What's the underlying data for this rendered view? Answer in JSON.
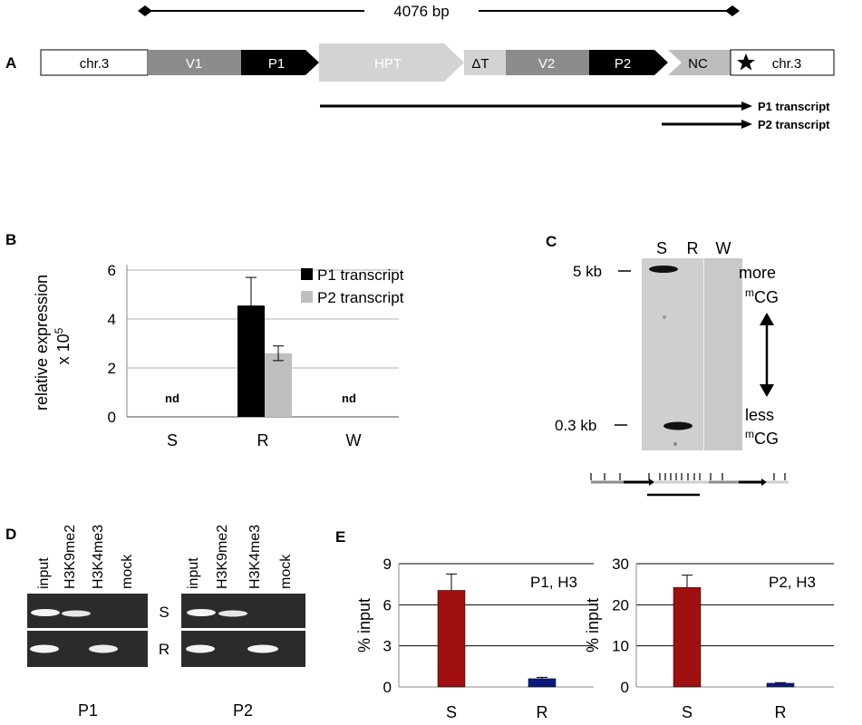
{
  "panel_a": {
    "label": "A",
    "span_label": "4076 bp",
    "segments": [
      "chr.3",
      "V1",
      "P1",
      "HPT",
      "ΔT",
      "V2",
      "P2",
      "NC",
      "chr.3"
    ],
    "star_icon": "star-icon",
    "transcripts": [
      "P1 transcript",
      "P2 transcript"
    ]
  },
  "panel_b": {
    "label": "B"
  },
  "panel_c": {
    "label": "C",
    "lanes": [
      "S",
      "R",
      "W"
    ],
    "size_markers": [
      "5 kb",
      "0.3 kb"
    ],
    "annotation_top": [
      "more",
      "CG"
    ],
    "annotation_bottom": [
      "less",
      "CG"
    ],
    "superscript": "m"
  },
  "panel_d": {
    "label": "D",
    "lanes": [
      "input",
      "H3K9me2",
      "H3K4me3",
      "mock"
    ],
    "rows": [
      "S",
      "R"
    ],
    "gels": [
      "P1",
      "P2"
    ]
  },
  "panel_e": {
    "label": "E"
  },
  "chart_data": [
    {
      "panel": "B",
      "type": "bar",
      "categories": [
        "S",
        "R",
        "W"
      ],
      "series": [
        {
          "name": "P1 transcript",
          "values": [
            null,
            4.55,
            null
          ],
          "errors": [
            null,
            1.15,
            null
          ],
          "color": "#000000"
        },
        {
          "name": "P2 transcript",
          "values": [
            null,
            2.6,
            null
          ],
          "errors": [
            null,
            0.3,
            null
          ],
          "color": "#bfbfbf"
        }
      ],
      "ylabel": [
        "relative expression",
        "x 10",
        "5"
      ],
      "ylim": [
        0,
        6
      ],
      "yticks": [
        0,
        2,
        4,
        6
      ],
      "annotations": [
        "nd",
        "nd"
      ],
      "legend": "top-right",
      "grid": true
    },
    {
      "panel": "E",
      "type": "bar",
      "title": "P1, H3",
      "categories": [
        "S",
        "R"
      ],
      "values": [
        7.05,
        0.6
      ],
      "errors": [
        1.2,
        0.1
      ],
      "colors": [
        "#a01010",
        "#0c1a80"
      ],
      "ylabel": "% input",
      "ylim": [
        0,
        9
      ],
      "yticks": [
        0,
        3,
        6,
        9
      ],
      "grid": true
    },
    {
      "panel": "E",
      "type": "bar",
      "title": "P2, H3",
      "categories": [
        "S",
        "R"
      ],
      "values": [
        24.2,
        0.9
      ],
      "errors": [
        3.0,
        0.15
      ],
      "colors": [
        "#a01010",
        "#0c1a80"
      ],
      "ylabel": "% input",
      "ylim": [
        0,
        30
      ],
      "yticks": [
        0,
        10,
        20,
        30
      ],
      "grid": true
    }
  ]
}
